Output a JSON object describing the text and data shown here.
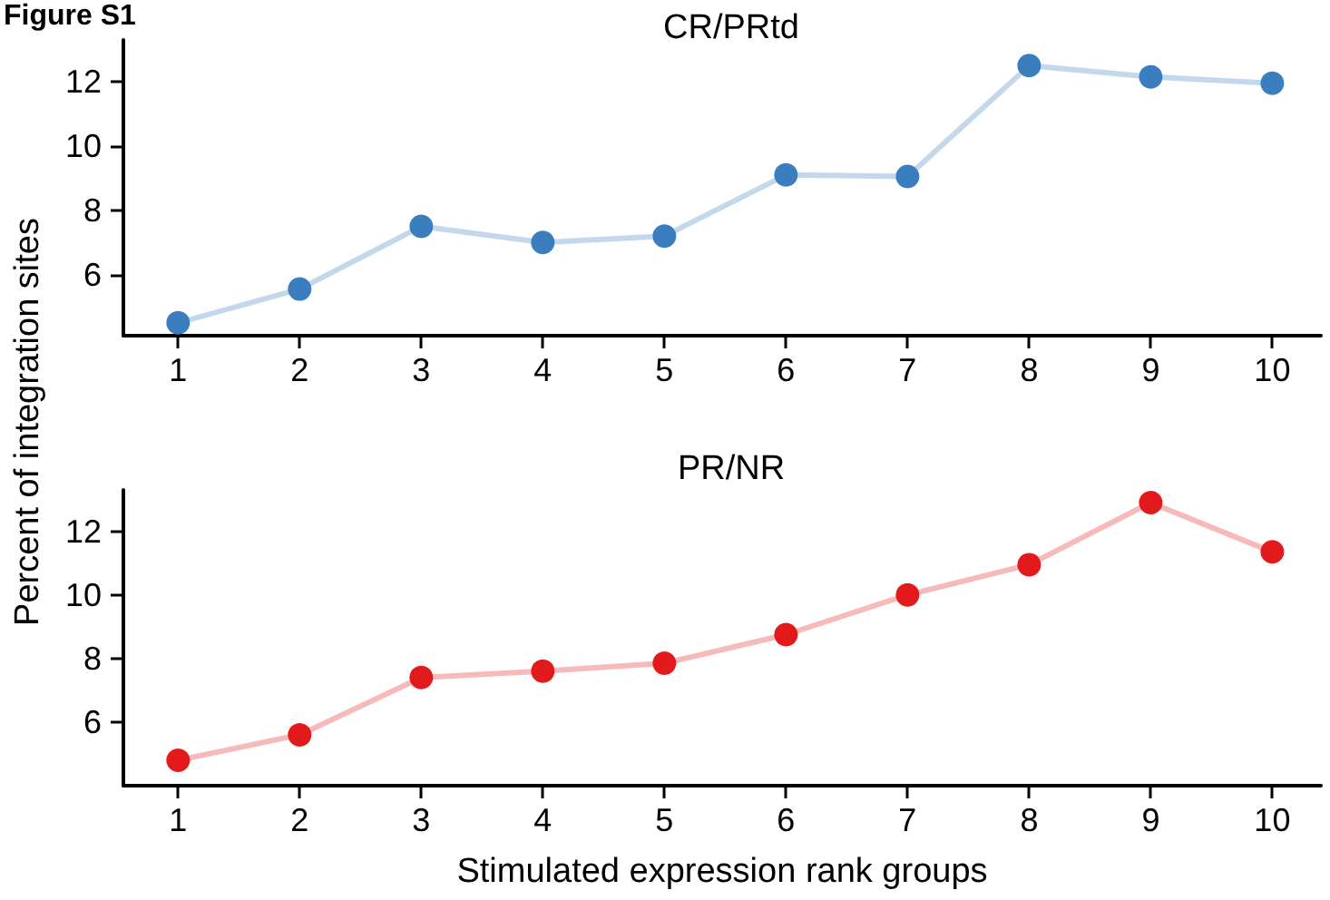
{
  "chart_data": [
    {
      "type": "line",
      "title": "CR/PRtd",
      "annotations": [
        "Figure S1"
      ],
      "x": [
        1,
        2,
        3,
        4,
        5,
        6,
        7,
        8,
        9,
        10
      ],
      "xlim": [
        0.55,
        10.4
      ],
      "xticks": [
        1,
        2,
        3,
        4,
        5,
        6,
        7,
        8,
        9,
        10
      ],
      "ylim": [
        4.1,
        13.3
      ],
      "yticks": [
        6,
        8,
        10,
        12
      ],
      "marker": "circle",
      "grid": false,
      "series": [
        {
          "color": "#3a7ebf",
          "values": [
            4.5,
            5.55,
            7.5,
            7.0,
            7.2,
            9.1,
            9.05,
            12.5,
            12.15,
            11.95
          ]
        }
      ]
    },
    {
      "type": "line",
      "title": "PR/NR",
      "xlabel": "Stimulated expression rank groups",
      "ylabel": "Percent of integration sites",
      "x": [
        1,
        2,
        3,
        4,
        5,
        6,
        7,
        8,
        9,
        10
      ],
      "xlim": [
        0.55,
        10.4
      ],
      "xticks": [
        1,
        2,
        3,
        4,
        5,
        6,
        7,
        8,
        9,
        10
      ],
      "ylim": [
        4.0,
        13.3
      ],
      "yticks": [
        6,
        8,
        10,
        12
      ],
      "marker": "circle",
      "grid": false,
      "series": [
        {
          "color": "#e31a1c",
          "values": [
            4.8,
            5.6,
            7.4,
            7.6,
            7.85,
            8.75,
            10.0,
            10.95,
            12.9,
            11.35
          ]
        }
      ]
    }
  ]
}
